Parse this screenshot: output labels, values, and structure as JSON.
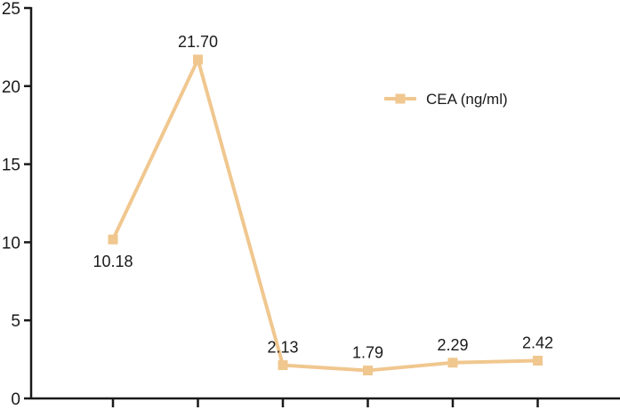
{
  "chart_data": {
    "type": "line",
    "x": [
      1,
      2,
      3,
      4,
      5,
      6
    ],
    "series": [
      {
        "name": "CEA (ng/ml)",
        "values": [
          10.18,
          21.7,
          2.13,
          1.79,
          2.29,
          2.42
        ],
        "labels": [
          "10.18",
          "21.70",
          "2.13",
          "1.79",
          "2.29",
          "2.42"
        ],
        "color": "#f0c78f",
        "marker": "square"
      }
    ],
    "ylim": [
      0,
      25
    ],
    "yticks": [
      0,
      5,
      10,
      15,
      20,
      25
    ],
    "ytick_labels": [
      "0",
      "5",
      "10",
      "15",
      "20",
      "25"
    ],
    "xlim": [
      0,
      7
    ],
    "xlabel": "",
    "ylabel": "",
    "title": "",
    "grid": false,
    "legend_position": "top-right",
    "axis_color": "#1a1a1a"
  }
}
